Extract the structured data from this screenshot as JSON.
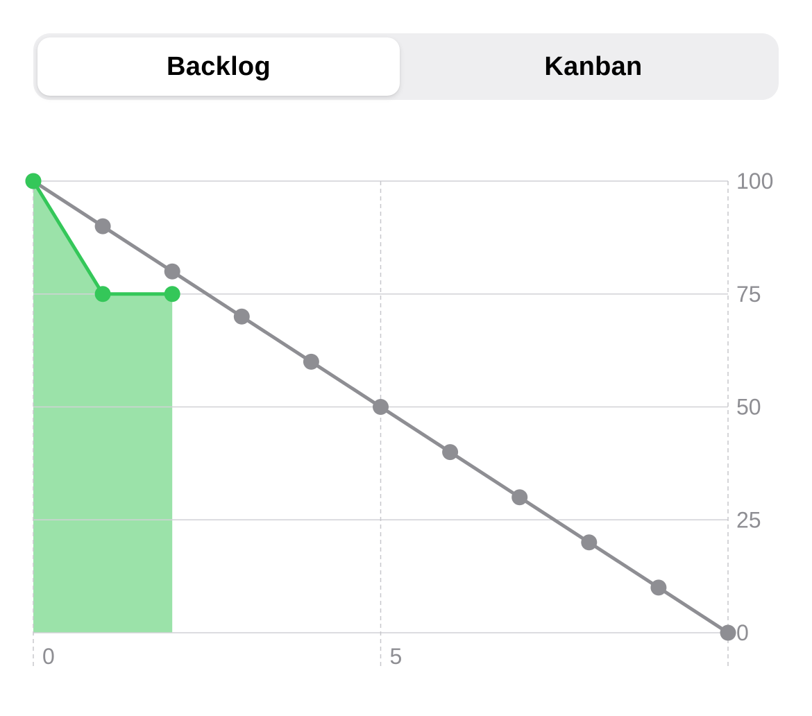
{
  "segmented_control": {
    "options": [
      "Backlog",
      "Kanban"
    ],
    "selected": "Backlog"
  },
  "chart_data": {
    "type": "line",
    "title": "",
    "xlabel": "",
    "ylabel": "",
    "xlim": [
      0,
      10
    ],
    "ylim": [
      0,
      100
    ],
    "x_ticks": [
      0,
      5
    ],
    "y_ticks": [
      0,
      25,
      50,
      75,
      100
    ],
    "y_axis_side": "right",
    "grid": true,
    "series": [
      {
        "color": "#8e8e93",
        "x": [
          0,
          1,
          2,
          3,
          4,
          5,
          6,
          7,
          8,
          9,
          10
        ],
        "values": [
          100,
          90,
          80,
          70,
          60,
          50,
          40,
          30,
          20,
          10,
          0
        ]
      },
      {
        "color": "#34c759",
        "fill_color": "#9be2a9",
        "filled": true,
        "x": [
          0,
          1,
          2
        ],
        "values": [
          100,
          75,
          75
        ]
      }
    ]
  }
}
